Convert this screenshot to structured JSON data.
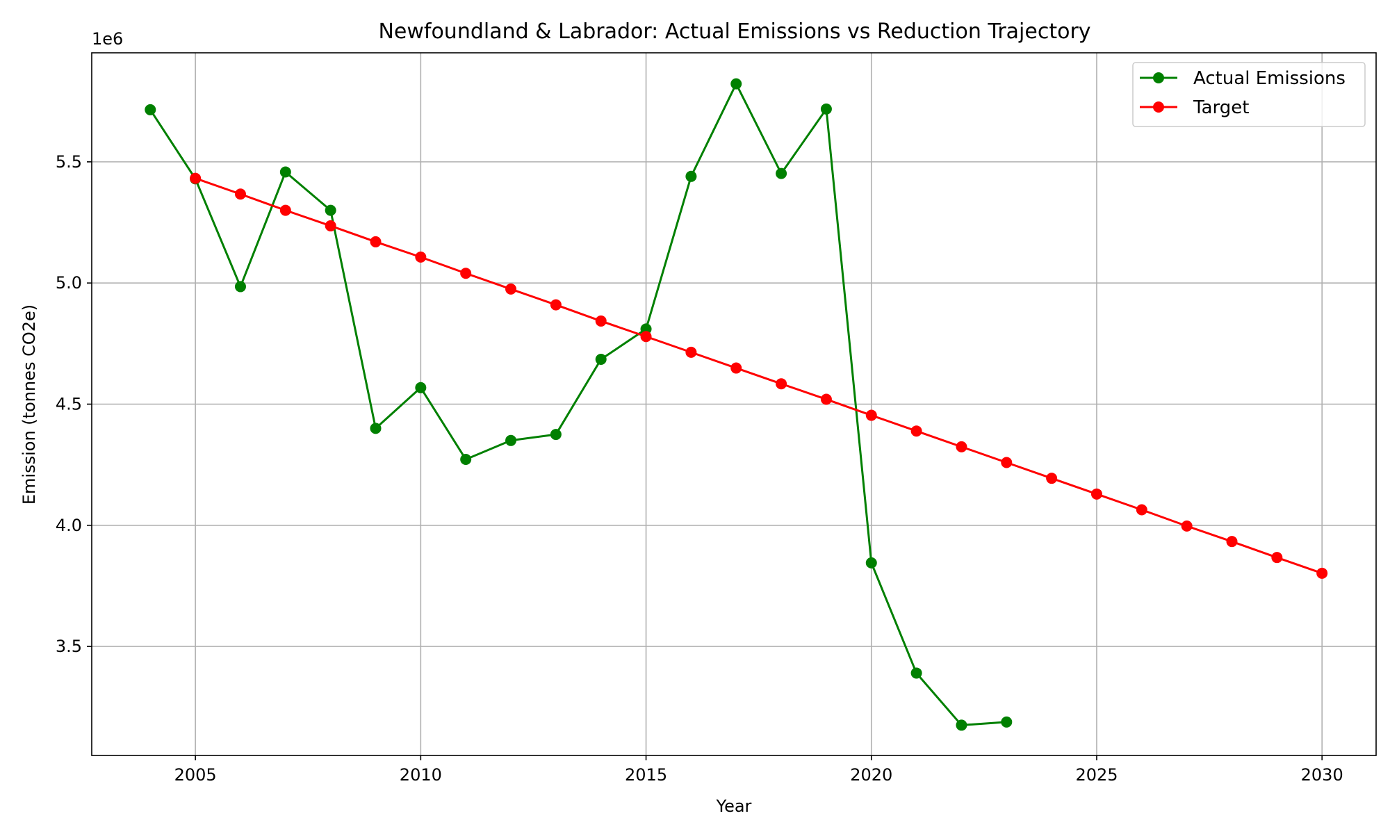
{
  "chart_data": {
    "type": "line",
    "title": "Newfoundland & Labrador: Actual Emissions vs Reduction Trajectory",
    "xlabel": "Year",
    "ylabel": "Emission (tonnes CO2e)",
    "y_offset_label": "1e6",
    "xlim": [
      2002.7,
      2031.2
    ],
    "ylim": [
      3050000,
      5950000
    ],
    "x_ticks": [
      2005,
      2010,
      2015,
      2020,
      2025,
      2030
    ],
    "x_tick_labels": [
      "2005",
      "2010",
      "2015",
      "2020",
      "2025",
      "2030"
    ],
    "y_ticks": [
      3500000,
      4000000,
      4500000,
      5000000,
      5500000
    ],
    "y_tick_labels": [
      "3.5",
      "4.0",
      "4.5",
      "5.0",
      "5.5"
    ],
    "grid": true,
    "legend_position": "top-right",
    "series": [
      {
        "name": "Actual Emissions",
        "color": "#008000",
        "marker": "circle",
        "x": [
          2004,
          2005,
          2006,
          2007,
          2008,
          2009,
          2010,
          2011,
          2012,
          2013,
          2014,
          2015,
          2016,
          2017,
          2018,
          2019,
          2020,
          2021,
          2022,
          2023
        ],
        "y": [
          5715000,
          5430000,
          4985000,
          5458000,
          5300000,
          4400000,
          4568000,
          4272000,
          4350000,
          4375000,
          4685000,
          4810000,
          5440000,
          5822000,
          5452000,
          5718000,
          3845000,
          3390000,
          3175000,
          3188000
        ]
      },
      {
        "name": "Target",
        "color": "#ff0000",
        "marker": "circle",
        "x": [
          2005,
          2006,
          2007,
          2008,
          2009,
          2010,
          2011,
          2012,
          2013,
          2014,
          2015,
          2016,
          2017,
          2018,
          2019,
          2020,
          2021,
          2022,
          2023,
          2024,
          2025,
          2026,
          2027,
          2028,
          2029,
          2030
        ],
        "y": [
          5432000,
          5367000,
          5300000,
          5236000,
          5170000,
          5107000,
          5040000,
          4975000,
          4910000,
          4843000,
          4779000,
          4714000,
          4649000,
          4584000,
          4520000,
          4454000,
          4389000,
          4324000,
          4259000,
          4194000,
          4129000,
          4064000,
          3997000,
          3933000,
          3867000,
          3802000
        ]
      }
    ]
  }
}
